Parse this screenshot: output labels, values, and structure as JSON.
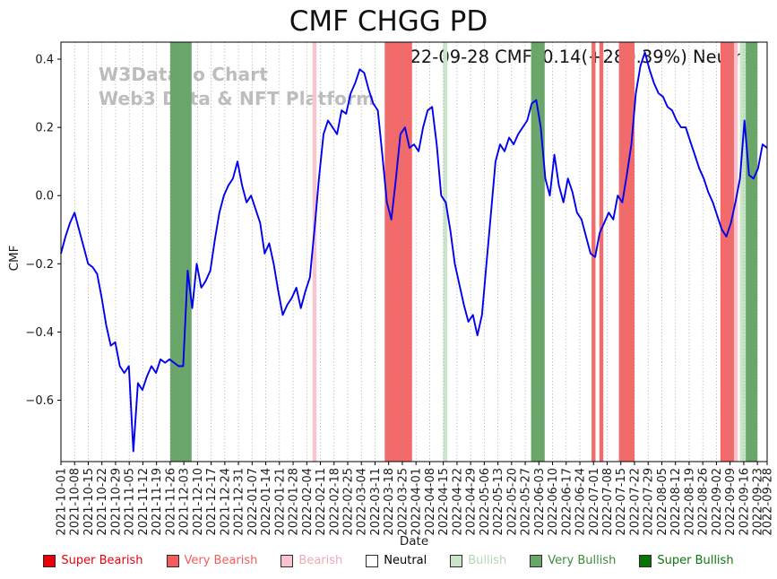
{
  "watermark": {
    "line1": "W3Data.io Chart",
    "line2": "Web3 Data & NFT Platform"
  },
  "chart_data": {
    "type": "line",
    "title": "CMF CHGG PD",
    "annotation": "2022-09-28 CMF: 0.14(+280.39%) Neutral",
    "xlabel": "Date",
    "ylabel": "CMF",
    "ylim": [
      -0.78,
      0.45
    ],
    "yticks": [
      0.4,
      0.2,
      0.0,
      -0.2,
      -0.4,
      -0.6
    ],
    "grid": "vertical-dotted",
    "legend_position": "bottom",
    "total_days": 362,
    "line_color": "#0000ee",
    "x_tick_labels": [
      "2021-10-01",
      "2021-10-08",
      "2021-10-15",
      "2021-10-22",
      "2021-10-29",
      "2021-11-05",
      "2021-11-12",
      "2021-11-19",
      "2021-11-26",
      "2021-12-03",
      "2021-12-10",
      "2021-12-17",
      "2021-12-24",
      "2021-12-31",
      "2022-01-07",
      "2022-01-14",
      "2022-01-21",
      "2022-01-28",
      "2022-02-04",
      "2022-02-11",
      "2022-02-18",
      "2022-02-25",
      "2022-03-04",
      "2022-03-11",
      "2022-03-18",
      "2022-03-25",
      "2022-04-01",
      "2022-04-08",
      "2022-04-15",
      "2022-04-22",
      "2022-04-29",
      "2022-05-06",
      "2022-05-13",
      "2022-05-20",
      "2022-05-27",
      "2022-06-03",
      "2022-06-10",
      "2022-06-17",
      "2022-06-24",
      "2022-07-01",
      "2022-07-08",
      "2022-07-15",
      "2022-07-22",
      "2022-07-29",
      "2022-08-05",
      "2022-08-12",
      "2022-08-19",
      "2022-08-26",
      "2022-09-02",
      "2022-09-09",
      "2022-09-16",
      "2022-09-23",
      "2022-09-28"
    ],
    "series": [
      {
        "name": "CMF",
        "values": [
          -0.17,
          -0.12,
          -0.08,
          -0.05,
          -0.1,
          -0.15,
          -0.2,
          -0.21,
          -0.23,
          -0.3,
          -0.38,
          -0.44,
          -0.43,
          -0.5,
          -0.52,
          -0.5,
          -0.75,
          -0.55,
          -0.57,
          -0.53,
          -0.5,
          -0.52,
          -0.48,
          -0.49,
          -0.48,
          -0.49,
          -0.5,
          -0.5,
          -0.22,
          -0.33,
          -0.2,
          -0.27,
          -0.25,
          -0.22,
          -0.13,
          -0.05,
          0.0,
          0.03,
          0.05,
          0.1,
          0.03,
          -0.02,
          0.0,
          -0.04,
          -0.08,
          -0.17,
          -0.14,
          -0.2,
          -0.28,
          -0.35,
          -0.32,
          -0.3,
          -0.27,
          -0.33,
          -0.28,
          -0.24,
          -0.1,
          0.05,
          0.18,
          0.22,
          0.2,
          0.18,
          0.25,
          0.24,
          0.3,
          0.33,
          0.37,
          0.36,
          0.31,
          0.27,
          0.25,
          0.12,
          -0.02,
          -0.07,
          0.05,
          0.18,
          0.2,
          0.14,
          0.15,
          0.13,
          0.2,
          0.25,
          0.26,
          0.15,
          0.0,
          -0.02,
          -0.1,
          -0.2,
          -0.26,
          -0.32,
          -0.37,
          -0.35,
          -0.41,
          -0.35,
          -0.2,
          -0.05,
          0.1,
          0.15,
          0.13,
          0.17,
          0.15,
          0.18,
          0.2,
          0.22,
          0.27,
          0.28,
          0.2,
          0.05,
          0.0,
          0.12,
          0.03,
          -0.02,
          0.05,
          0.01,
          -0.05,
          -0.07,
          -0.12,
          -0.17,
          -0.18,
          -0.11,
          -0.08,
          -0.05,
          -0.07,
          0.0,
          -0.02,
          0.06,
          0.15,
          0.3,
          0.38,
          0.42,
          0.37,
          0.33,
          0.3,
          0.29,
          0.26,
          0.25,
          0.22,
          0.2,
          0.2,
          0.16,
          0.12,
          0.08,
          0.05,
          0.01,
          -0.02,
          -0.06,
          -0.1,
          -0.12,
          -0.08,
          -0.02,
          0.05,
          0.22,
          0.06,
          0.05,
          0.08,
          0.15,
          0.14
        ]
      }
    ],
    "bands": [
      {
        "start": 56,
        "end": 67,
        "type": "very_bullish"
      },
      {
        "start": 129,
        "end": 131,
        "type": "bearish"
      },
      {
        "start": 166,
        "end": 180,
        "type": "very_bearish"
      },
      {
        "start": 196,
        "end": 198,
        "type": "bullish"
      },
      {
        "start": 241,
        "end": 248,
        "type": "very_bullish"
      },
      {
        "start": 272,
        "end": 274,
        "type": "very_bearish"
      },
      {
        "start": 276,
        "end": 278,
        "type": "very_bearish"
      },
      {
        "start": 286,
        "end": 294,
        "type": "very_bearish"
      },
      {
        "start": 338,
        "end": 345,
        "type": "very_bearish"
      },
      {
        "start": 345,
        "end": 347,
        "type": "bearish"
      },
      {
        "start": 348,
        "end": 351,
        "type": "bullish"
      },
      {
        "start": 351,
        "end": 357,
        "type": "very_bullish"
      }
    ],
    "band_colors": {
      "super_bearish": "#e8000b",
      "very_bearish": "#f26a6a",
      "bearish": "#f9c4ce",
      "neutral": "#ffffff",
      "bullish": "#c9e5c9",
      "very_bullish": "#6aa56a",
      "super_bullish": "#077307"
    },
    "legend": [
      {
        "label": "Super Bearish",
        "color": "#e8000b",
        "text_color": "#e8000b"
      },
      {
        "label": "Very Bearish",
        "color": "#f25c5c",
        "text_color": "#f25c5c"
      },
      {
        "label": "Bearish",
        "color": "#f9c4ce",
        "text_color": "#f4a7b5"
      },
      {
        "label": "Neutral",
        "color": "#ffffff",
        "text_color": "#000000"
      },
      {
        "label": "Bullish",
        "color": "#c9e5c9",
        "text_color": "#b2d8b2"
      },
      {
        "label": "Very Bullish",
        "color": "#6aa56a",
        "text_color": "#3c8c3c"
      },
      {
        "label": "Super Bullish",
        "color": "#077307",
        "text_color": "#0a7a0a"
      }
    ]
  }
}
